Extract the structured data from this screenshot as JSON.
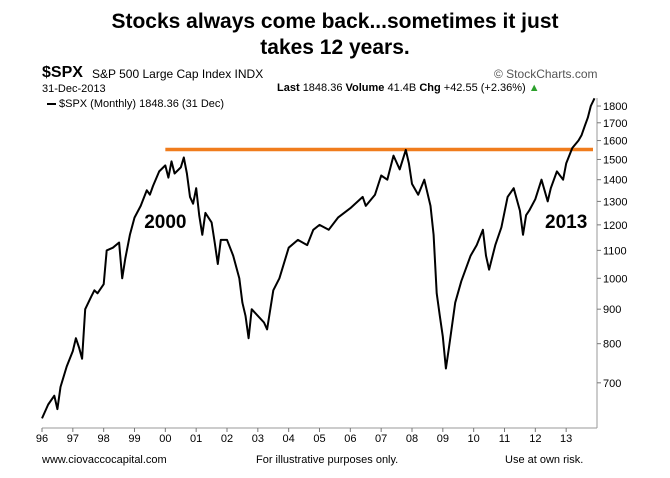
{
  "headline": {
    "line1": "Stocks always come back...sometimes it just",
    "line2": "takes 12 years."
  },
  "header": {
    "ticker": "$SPX",
    "index_name": "S&P 500 Large Cap Index  INDX",
    "brand": "© StockCharts.com",
    "date": "31-Dec-2013",
    "last_label": "Last",
    "last_value": "1848.36",
    "volume_label": "Volume",
    "volume_value": "41.4B",
    "chg_label": "Chg",
    "chg_value": "+42.55 (+2.36%)",
    "chg_arrow": "▲",
    "series_legend": "$SPX (Monthly) 1848.36 (31 Dec)"
  },
  "footer": {
    "left": "www.ciovaccocapital.com",
    "middle": "For illustrative purposes only.",
    "right": "Use at own risk."
  },
  "colors": {
    "line": "#000000",
    "resistance": "#f07c1c",
    "up_arrow": "#2ca02c"
  },
  "chart_data": {
    "type": "line",
    "scale": "log",
    "ylim": [
      600,
      1850
    ],
    "xlim": [
      1996.0,
      2014.0
    ],
    "y_ticks": [
      700,
      800,
      900,
      1000,
      1100,
      1200,
      1300,
      1400,
      1500,
      1600,
      1700,
      1800
    ],
    "x_ticks": [
      "96",
      "97",
      "98",
      "99",
      "00",
      "01",
      "02",
      "03",
      "04",
      "05",
      "06",
      "07",
      "08",
      "09",
      "10",
      "11",
      "12",
      "13"
    ],
    "annotations": [
      {
        "text": "2000",
        "x": 2000.0,
        "y": 1220
      },
      {
        "text": "2013",
        "x": 2013.0,
        "y": 1220
      }
    ],
    "resistance_line": {
      "y": 1552,
      "x_start": 2000.0,
      "x_end": 2014.0
    },
    "series": [
      {
        "name": "$SPX (Monthly)",
        "x": [
          1996.0,
          1996.2,
          1996.4,
          1996.5,
          1996.6,
          1996.8,
          1997.0,
          1997.1,
          1997.2,
          1997.3,
          1997.4,
          1997.6,
          1997.7,
          1997.8,
          1998.0,
          1998.1,
          1998.3,
          1998.5,
          1998.6,
          1998.7,
          1998.85,
          1999.0,
          1999.2,
          1999.4,
          1999.5,
          1999.6,
          1999.8,
          2000.0,
          2000.1,
          2000.2,
          2000.3,
          2000.5,
          2000.6,
          2000.7,
          2000.8,
          2000.9,
          2001.0,
          2001.1,
          2001.2,
          2001.3,
          2001.5,
          2001.6,
          2001.7,
          2001.8,
          2002.0,
          2002.2,
          2002.4,
          2002.5,
          2002.6,
          2002.7,
          2002.8,
          2003.0,
          2003.2,
          2003.3,
          2003.5,
          2003.7,
          2004.0,
          2004.3,
          2004.6,
          2004.8,
          2005.0,
          2005.3,
          2005.6,
          2006.0,
          2006.4,
          2006.5,
          2006.8,
          2007.0,
          2007.2,
          2007.4,
          2007.6,
          2007.8,
          2007.9,
          2008.0,
          2008.2,
          2008.4,
          2008.6,
          2008.7,
          2008.8,
          2008.9,
          2009.0,
          2009.1,
          2009.2,
          2009.4,
          2009.6,
          2009.9,
          2010.1,
          2010.3,
          2010.4,
          2010.5,
          2010.7,
          2010.9,
          2011.1,
          2011.3,
          2011.5,
          2011.6,
          2011.7,
          2011.8,
          2012.0,
          2012.2,
          2012.4,
          2012.5,
          2012.7,
          2012.9,
          2013.0,
          2013.2,
          2013.4,
          2013.5,
          2013.6,
          2013.7,
          2013.8,
          2013.92
        ],
        "values": [
          620,
          650,
          670,
          640,
          690,
          740,
          780,
          815,
          790,
          760,
          900,
          940,
          960,
          950,
          980,
          1100,
          1110,
          1130,
          1000,
          1070,
          1160,
          1230,
          1280,
          1350,
          1330,
          1370,
          1440,
          1470,
          1410,
          1490,
          1430,
          1460,
          1510,
          1430,
          1320,
          1290,
          1360,
          1240,
          1160,
          1250,
          1210,
          1130,
          1050,
          1140,
          1140,
          1080,
          1000,
          920,
          880,
          815,
          900,
          880,
          860,
          840,
          960,
          1000,
          1110,
          1140,
          1120,
          1180,
          1200,
          1180,
          1230,
          1270,
          1320,
          1280,
          1330,
          1420,
          1400,
          1520,
          1450,
          1550,
          1480,
          1380,
          1330,
          1400,
          1280,
          1160,
          950,
          880,
          820,
          735,
          790,
          920,
          990,
          1080,
          1120,
          1180,
          1080,
          1030,
          1120,
          1190,
          1320,
          1360,
          1260,
          1160,
          1240,
          1260,
          1310,
          1400,
          1300,
          1360,
          1440,
          1400,
          1480,
          1560,
          1600,
          1630,
          1680,
          1730,
          1800,
          1848.36
        ]
      }
    ]
  }
}
